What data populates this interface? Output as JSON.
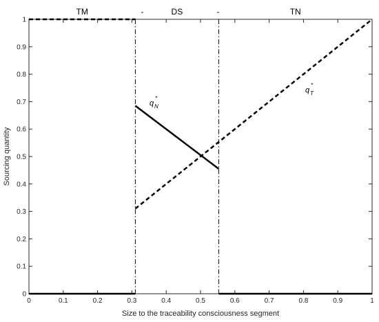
{
  "chart_data": {
    "type": "line",
    "xlabel": "Size to the traceability consciousness segment",
    "ylabel": "Sourcing quantity",
    "xlim": [
      0,
      1
    ],
    "ylim": [
      0,
      1
    ],
    "xticks": [
      "0",
      "0.1",
      "0.2",
      "0.3",
      "0.4",
      "0.5",
      "0.6",
      "0.7",
      "0.8",
      "0.9",
      "1"
    ],
    "yticks": [
      "0",
      "0.1",
      "0.2",
      "0.3",
      "0.4",
      "0.5",
      "0.6",
      "0.7",
      "0.8",
      "0.9",
      "1"
    ],
    "grid": false,
    "regions": [
      "TM",
      "-",
      "DS",
      "-",
      "TN"
    ],
    "boundaries": [
      0.31,
      0.553
    ],
    "series": [
      {
        "label": "q",
        "label_sub": "N",
        "label_sup": "*",
        "style": "solid",
        "segments": [
          [
            [
              0,
              0
            ],
            [
              0.31,
              0
            ]
          ],
          [
            [
              0.31,
              0.685
            ],
            [
              0.553,
              0.455
            ]
          ],
          [
            [
              0.553,
              0
            ],
            [
              1,
              0
            ]
          ]
        ]
      },
      {
        "label": "q",
        "label_sub": "T",
        "label_sup": "*",
        "style": "dashed",
        "segments": [
          [
            [
              0,
              1
            ],
            [
              0.31,
              1
            ]
          ],
          [
            [
              0.31,
              0.31
            ],
            [
              1,
              1
            ]
          ]
        ]
      }
    ],
    "colors": {
      "line": "#000000",
      "axis": "#262626"
    }
  }
}
